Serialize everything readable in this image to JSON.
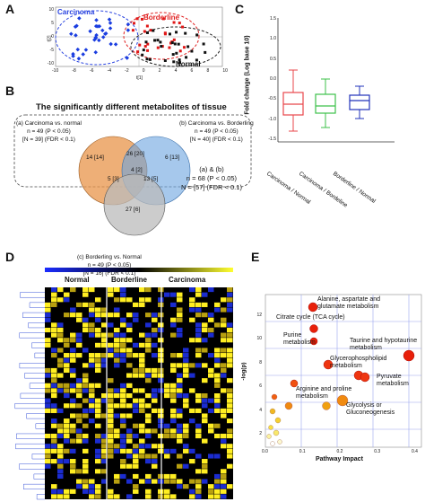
{
  "panels": {
    "a": {
      "letter": "A",
      "carcinoma": "Carcinoma",
      "borderline": "Borderline",
      "normal": "Normal",
      "ylabel": "t[2]",
      "xlabel": "t[1]",
      "xticks": [
        "-10",
        "-8",
        "-6",
        "-4",
        "-2",
        "0",
        "2",
        "4",
        "6",
        "8",
        "10"
      ],
      "yticks": [
        "10",
        "5",
        "0",
        "-5",
        "-10"
      ]
    },
    "b": {
      "letter": "B",
      "title": "The significantly different metabolites of tissue",
      "left_text": [
        "(a) Carcinoma vs. normal",
        "n = 49 (P < 0.05)",
        "[N = 39] (FDR < 0.1)"
      ],
      "right_text": [
        "(b) Carcinoma vs. Borderling",
        "n = 49 (P < 0.05)",
        "[N = 40] (FDR < 0.1)"
      ],
      "ab_text": [
        "(a) & (b)",
        "n = 68 (P < 0.05)",
        "N = [57] (FDR < 0.1)"
      ],
      "bottom_text": [
        "(c) Borderling vs. Normal",
        "n = 49 (P < 0.05)",
        "[N = 16] (FDR < 0.1)"
      ],
      "regions": {
        "a_only": "14 [14]",
        "ab": "26 [20]",
        "b_only": "6 [13]",
        "abc": "4 [2]",
        "ac": "5 [3]",
        "bc": "13 [5]",
        "c_only": "27 [6]"
      }
    },
    "c": {
      "letter": "C",
      "ylabel": "Fold change (Log base 10)",
      "yticks": [
        "1.5",
        "1.0",
        "0.5",
        "0.0",
        "-0.5",
        "-1.0",
        "-1.5"
      ],
      "categories": [
        "Carcinoma / Normal",
        "Carcinoma / Bordeline",
        "Borderline / Normal"
      ],
      "colors": [
        "#e8474b",
        "#3cc04a",
        "#2233bb"
      ]
    },
    "d": {
      "letter": "D",
      "groups": [
        "Normal",
        "Borderline",
        "Carcinoma"
      ]
    },
    "e": {
      "letter": "E",
      "xlabel": "Pathway Impact",
      "ylabel": "-log(p)",
      "xticks": [
        "0.0",
        "0.1",
        "0.2",
        "0.3",
        "0.4"
      ],
      "yticks": [
        "12",
        "10",
        "8",
        "6",
        "4",
        "2"
      ],
      "labels": {
        "alanine": "Alanine, aspartate and glutamate metabolism",
        "citrate": "Citrate cycle (TCA cycle)",
        "taurine": "Taurine and hypotaurine metabolism",
        "purine": "Purine metabolism",
        "glycero": "Glycerophospholipid metabolism",
        "pyruvate": "Pyruvate metabolism",
        "arginine": "Arginine and proline metabolism",
        "glycolysis": "Glycolysis or Gluconeogenesis"
      }
    }
  }
}
